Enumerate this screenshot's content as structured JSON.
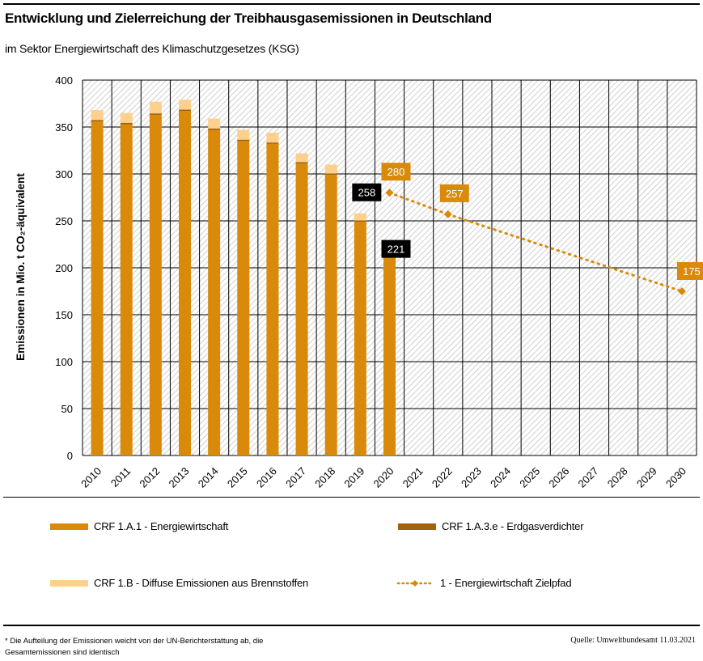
{
  "header": {
    "title": "Entwicklung und Zielerreichung der Treibhausgasemissionen in Deutschland",
    "subtitle": "im Sektor Energiewirtschaft des Klimaschutzgesetzes (KSG)"
  },
  "chart_data": {
    "type": "bar",
    "stacked": true,
    "title": "Entwicklung und Zielerreichung der Treibhausgasemissionen in Deutschland",
    "subtitle": "im Sektor Energiewirtschaft des Klimaschutzgesetzes (KSG)",
    "xlabel": "",
    "ylabel": "Emissionen in Mio. t CO₂-äquivalent",
    "ylim": [
      0,
      400
    ],
    "yticks": [
      0,
      50,
      100,
      150,
      200,
      250,
      300,
      350,
      400
    ],
    "grid": true,
    "background": "hatched",
    "categories": [
      "2010",
      "2011",
      "2012",
      "2013",
      "2014",
      "2015",
      "2016",
      "2017",
      "2018",
      "2019",
      "2020",
      "2021",
      "2022",
      "2023",
      "2024",
      "2025",
      "2026",
      "2027",
      "2028",
      "2029",
      "2030"
    ],
    "series": [
      {
        "name": "CRF 1.A.1 - Energiewirtschaft",
        "kind": "bar",
        "color": "#D98A0B",
        "values": [
          356,
          353,
          363,
          367,
          347,
          335,
          332,
          311,
          299,
          249,
          211,
          null,
          null,
          null,
          null,
          null,
          null,
          null,
          null,
          null,
          null
        ]
      },
      {
        "name": "CRF 1.A.3.e - Erdgasverdichter",
        "kind": "bar",
        "color": "#A0620A",
        "values": [
          1.5,
          1.5,
          1.5,
          1.5,
          1.5,
          1.5,
          1.5,
          1.5,
          1.5,
          1.5,
          1.5,
          null,
          null,
          null,
          null,
          null,
          null,
          null,
          null,
          null,
          null
        ]
      },
      {
        "name": "CRF 1.B - Diffuse Emissionen aus Brennstoffen",
        "kind": "bar",
        "color": "#FDD08C",
        "values": [
          10.5,
          10.5,
          12.5,
          10.5,
          10.5,
          10.5,
          10.5,
          9.5,
          9.5,
          7.5,
          8.5,
          null,
          null,
          null,
          null,
          null,
          null,
          null,
          null,
          null,
          null
        ]
      },
      {
        "name": "1 - Energiewirtschaft Zielpfad",
        "kind": "line",
        "style": "dotted-with-diamond-markers",
        "color": "#D98A0B",
        "values": [
          null,
          null,
          null,
          null,
          null,
          null,
          null,
          null,
          null,
          null,
          280,
          null,
          257,
          null,
          null,
          null,
          null,
          null,
          null,
          null,
          175
        ]
      }
    ],
    "annotations": [
      {
        "category": "2019",
        "label": "258",
        "style": "black-box",
        "value": 258
      },
      {
        "category": "2020",
        "label": "221",
        "style": "black-box",
        "value": 221
      },
      {
        "category": "2020",
        "label": "280",
        "style": "orange-box",
        "value": 280
      },
      {
        "category": "2022",
        "label": "257",
        "style": "orange-box",
        "value": 257
      },
      {
        "category": "2030",
        "label": "175",
        "style": "orange-box",
        "value": 175
      }
    ],
    "legend_position": "bottom"
  },
  "legend": [
    {
      "label": "CRF 1.A.1 - Energiewirtschaft",
      "color": "#D98A0B",
      "kind": "bar"
    },
    {
      "label": "CRF 1.A.3.e - Erdgasverdichter",
      "color": "#A0620A",
      "kind": "bar"
    },
    {
      "label": "CRF 1.B - Diffuse Emissionen aus Brennstoffen",
      "color": "#FDD08C",
      "kind": "bar"
    },
    {
      "label": "1 - Energiewirtschaft Zielpfad",
      "color": "#D98A0B",
      "kind": "line"
    }
  ],
  "footer": {
    "footnote": "* Die Aufteilung der Emissionen weicht von der UN-Berichterstattung ab, die Gesamtemissionen sind identisch",
    "source": "Quelle: Umweltbundesamt  11.03.2021"
  }
}
